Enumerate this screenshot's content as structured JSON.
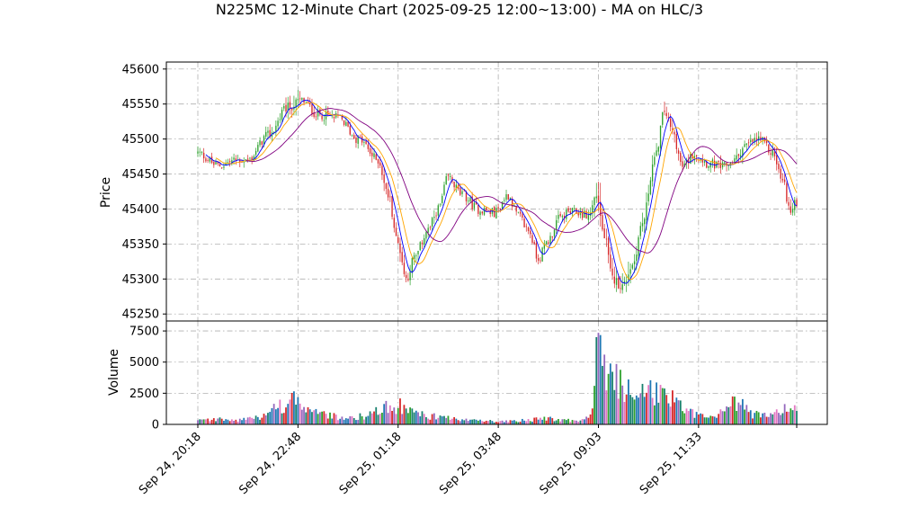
{
  "chart_data": {
    "type": "candlestick",
    "title": "N225MC 12-Minute Chart (2025-09-25 12:00~13:00) - MA on HLC/3",
    "price_panel": {
      "ylabel": "Price",
      "ylim": [
        45240,
        45610
      ],
      "yticks": [
        45250,
        45300,
        45350,
        45400,
        45450,
        45500,
        45550,
        45600
      ],
      "grid": true
    },
    "volume_panel": {
      "ylabel": "Volume",
      "ylim": [
        0,
        8300
      ],
      "yticks": [
        0,
        2500,
        5000,
        7500
      ],
      "grid": true
    },
    "x_tick_labels": [
      "Sep 24, 20:18",
      "Sep 24, 22:48",
      "Sep 25, 01:18",
      "Sep 25, 03:48",
      "Sep 25, 09:03",
      "Sep 25, 11:33"
    ],
    "bar_count": 300,
    "x_tick_index": [
      0,
      50,
      100,
      150,
      200,
      250
    ],
    "up_color": "#2ca02c",
    "down_color": "#d62728",
    "ma_colors": [
      "#0000ff",
      "#ffa500",
      "#800080"
    ],
    "price_anchors": [
      [
        0,
        45480
      ],
      [
        10,
        45462
      ],
      [
        20,
        45470
      ],
      [
        25,
        45470
      ],
      [
        35,
        45505
      ],
      [
        45,
        45545
      ],
      [
        52,
        45555
      ],
      [
        60,
        45535
      ],
      [
        70,
        45530
      ],
      [
        80,
        45500
      ],
      [
        90,
        45470
      ],
      [
        95,
        45420
      ],
      [
        100,
        45350
      ],
      [
        104,
        45300
      ],
      [
        108,
        45330
      ],
      [
        115,
        45370
      ],
      [
        120,
        45400
      ],
      [
        125,
        45445
      ],
      [
        132,
        45420
      ],
      [
        140,
        45400
      ],
      [
        148,
        45395
      ],
      [
        155,
        45420
      ],
      [
        160,
        45390
      ],
      [
        165,
        45370
      ],
      [
        170,
        45330
      ],
      [
        175,
        45355
      ],
      [
        180,
        45385
      ],
      [
        185,
        45395
      ],
      [
        190,
        45395
      ],
      [
        195,
        45390
      ],
      [
        199,
        45420
      ],
      [
        203,
        45360
      ],
      [
        207,
        45300
      ],
      [
        212,
        45290
      ],
      [
        217,
        45320
      ],
      [
        222,
        45380
      ],
      [
        228,
        45470
      ],
      [
        233,
        45540
      ],
      [
        237,
        45510
      ],
      [
        242,
        45460
      ],
      [
        248,
        45480
      ],
      [
        255,
        45465
      ],
      [
        262,
        45460
      ],
      [
        268,
        45470
      ],
      [
        273,
        45490
      ],
      [
        280,
        45500
      ],
      [
        287,
        45480
      ],
      [
        292,
        45440
      ],
      [
        296,
        45395
      ],
      [
        299,
        45410
      ]
    ],
    "volume_anchors": [
      [
        0,
        300
      ],
      [
        10,
        400
      ],
      [
        20,
        350
      ],
      [
        30,
        600
      ],
      [
        35,
        1200
      ],
      [
        40,
        1400
      ],
      [
        45,
        1700
      ],
      [
        48,
        2200
      ],
      [
        50,
        2600
      ],
      [
        53,
        1400
      ],
      [
        58,
        900
      ],
      [
        65,
        700
      ],
      [
        75,
        500
      ],
      [
        85,
        700
      ],
      [
        90,
        1100
      ],
      [
        95,
        1600
      ],
      [
        100,
        1500
      ],
      [
        105,
        1100
      ],
      [
        110,
        800
      ],
      [
        120,
        600
      ],
      [
        130,
        400
      ],
      [
        140,
        300
      ],
      [
        150,
        250
      ],
      [
        160,
        300
      ],
      [
        170,
        400
      ],
      [
        175,
        550
      ],
      [
        180,
        400
      ],
      [
        190,
        300
      ],
      [
        195,
        500
      ],
      [
        197,
        1400
      ],
      [
        199,
        5000
      ],
      [
        200,
        7000
      ],
      [
        202,
        6000
      ],
      [
        205,
        4300
      ],
      [
        208,
        3600
      ],
      [
        212,
        3000
      ],
      [
        216,
        2500
      ],
      [
        222,
        2300
      ],
      [
        226,
        2500
      ],
      [
        230,
        2800
      ],
      [
        236,
        2100
      ],
      [
        240,
        1400
      ],
      [
        246,
        1000
      ],
      [
        252,
        600
      ],
      [
        258,
        500
      ],
      [
        262,
        900
      ],
      [
        266,
        1600
      ],
      [
        272,
        1400
      ],
      [
        278,
        800
      ],
      [
        284,
        700
      ],
      [
        290,
        900
      ],
      [
        295,
        1500
      ],
      [
        299,
        1200
      ]
    ]
  }
}
